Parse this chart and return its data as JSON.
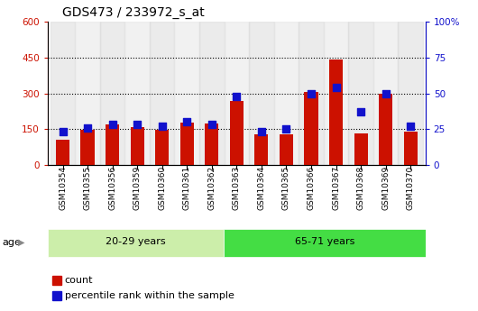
{
  "title": "GDS473 / 233972_s_at",
  "samples": [
    "GSM10354",
    "GSM10355",
    "GSM10356",
    "GSM10359",
    "GSM10360",
    "GSM10361",
    "GSM10362",
    "GSM10363",
    "GSM10364",
    "GSM10365",
    "GSM10366",
    "GSM10367",
    "GSM10368",
    "GSM10369",
    "GSM10370"
  ],
  "counts": [
    105,
    145,
    170,
    158,
    148,
    178,
    175,
    268,
    128,
    128,
    305,
    442,
    130,
    298,
    140
  ],
  "percentiles": [
    23,
    26,
    28,
    28,
    27,
    30,
    28,
    48,
    23,
    25,
    50,
    54,
    37,
    50,
    27
  ],
  "group1_label": "20-29 years",
  "group2_label": "65-71 years",
  "group1_count": 7,
  "group2_count": 8,
  "left_ylim": [
    0,
    600
  ],
  "right_ylim": [
    0,
    100
  ],
  "left_yticks": [
    0,
    150,
    300,
    450,
    600
  ],
  "right_yticks": [
    0,
    25,
    50,
    75,
    100
  ],
  "bar_color": "#cc1100",
  "dot_color": "#1111cc",
  "group1_bg": "#cceeaa",
  "group2_bg": "#44dd44",
  "age_label": "age",
  "legend_count": "count",
  "legend_pct": "percentile rank within the sample",
  "bar_width": 0.55,
  "dot_size": 40,
  "title_fontsize": 10,
  "tick_fontsize": 7.5,
  "axis_fontsize": 8
}
